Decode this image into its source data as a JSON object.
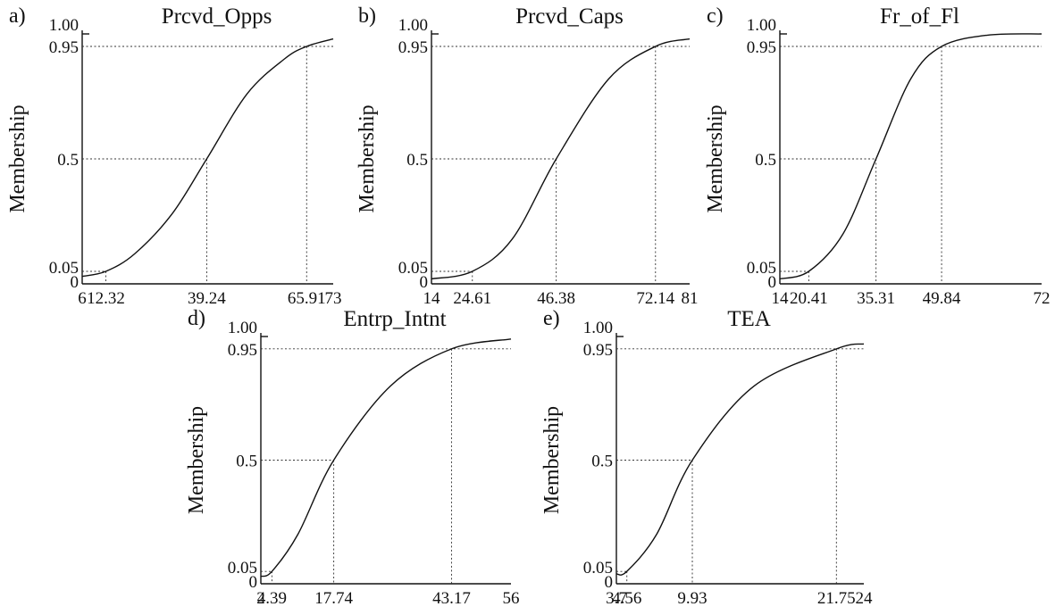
{
  "chart_data": [
    {
      "type": "line",
      "panel_label": "a)",
      "title": "Prcvd_Opps",
      "ylabel": "Membership",
      "x_ticks": [
        "6",
        "12.32",
        "39.24",
        "65.91",
        "73"
      ],
      "y_ticks": [
        "0",
        "0.05",
        "0.5",
        "0.95",
        "1.00"
      ],
      "xlim": [
        6,
        73
      ],
      "ylim": [
        0,
        1
      ],
      "anchors": {
        "full_non_membership": 12.32,
        "crossover": 39.24,
        "full_membership": 65.91
      },
      "series": [
        {
          "x": [
            6,
            12.32,
            20,
            30,
            39.24,
            50,
            60,
            65.91,
            73
          ],
          "values": [
            0.03,
            0.05,
            0.12,
            0.28,
            0.5,
            0.76,
            0.9,
            0.95,
            0.98
          ]
        }
      ]
    },
    {
      "type": "line",
      "panel_label": "b)",
      "title": "Prcvd_Caps",
      "ylabel": "Membership",
      "x_ticks": [
        "14",
        "24.61",
        "46.38",
        "72.14",
        "81"
      ],
      "y_ticks": [
        "0",
        "0.05",
        "0.5",
        "0.95",
        "1.00"
      ],
      "xlim": [
        14,
        81
      ],
      "ylim": [
        0,
        1
      ],
      "anchors": {
        "full_non_membership": 24.61,
        "crossover": 46.38,
        "full_membership": 72.14
      },
      "series": [
        {
          "x": [
            14,
            24.61,
            35,
            46.38,
            60,
            72.14,
            81
          ],
          "values": [
            0.02,
            0.05,
            0.18,
            0.5,
            0.82,
            0.95,
            0.98
          ]
        }
      ]
    },
    {
      "type": "line",
      "panel_label": "c)",
      "title": "Fr_of_Fl",
      "ylabel": "Membership",
      "x_ticks": [
        "14",
        "20.41",
        "35.31",
        "49.84",
        "72"
      ],
      "y_ticks": [
        "0",
        "0.05",
        "0.5",
        "0.95",
        "1.00"
      ],
      "xlim": [
        14,
        72
      ],
      "ylim": [
        0,
        1
      ],
      "anchors": {
        "full_non_membership": 20.41,
        "crossover": 35.31,
        "full_membership": 49.84
      },
      "series": [
        {
          "x": [
            14,
            20.41,
            28,
            35.31,
            43,
            49.84,
            60,
            72
          ],
          "values": [
            0.02,
            0.05,
            0.2,
            0.5,
            0.82,
            0.95,
            0.995,
            1.0
          ]
        }
      ]
    },
    {
      "type": "line",
      "panel_label": "d)",
      "title": "Entrp_Intnt",
      "ylabel": "Membership",
      "x_ticks": [
        "2",
        "4.39",
        "17.74",
        "43.17",
        "56"
      ],
      "y_ticks": [
        "0",
        "0.05",
        "0.5",
        "0.95",
        "1.00"
      ],
      "xlim": [
        2,
        56
      ],
      "ylim": [
        0,
        1
      ],
      "anchors": {
        "full_non_membership": 4.39,
        "crossover": 17.74,
        "full_membership": 43.17
      },
      "series": [
        {
          "x": [
            2,
            4.39,
            10,
            17.74,
            30,
            43.17,
            56
          ],
          "values": [
            0.03,
            0.05,
            0.2,
            0.5,
            0.8,
            0.95,
            0.99
          ]
        }
      ]
    },
    {
      "type": "line",
      "panel_label": "e)",
      "title": "TEA",
      "ylabel": "Membership",
      "x_ticks": [
        "3.7",
        "4.56",
        "9.93",
        "21.75",
        "24"
      ],
      "y_ticks": [
        "0",
        "0.05",
        "0.5",
        "0.95",
        "1.00"
      ],
      "xlim": [
        3.7,
        24
      ],
      "ylim": [
        0,
        1
      ],
      "anchors": {
        "full_non_membership": 4.56,
        "crossover": 9.93,
        "full_membership": 21.75
      },
      "series": [
        {
          "x": [
            3.7,
            4.56,
            7,
            9.93,
            15,
            21.75,
            24
          ],
          "values": [
            0.04,
            0.05,
            0.2,
            0.5,
            0.8,
            0.95,
            0.97
          ]
        }
      ]
    }
  ]
}
